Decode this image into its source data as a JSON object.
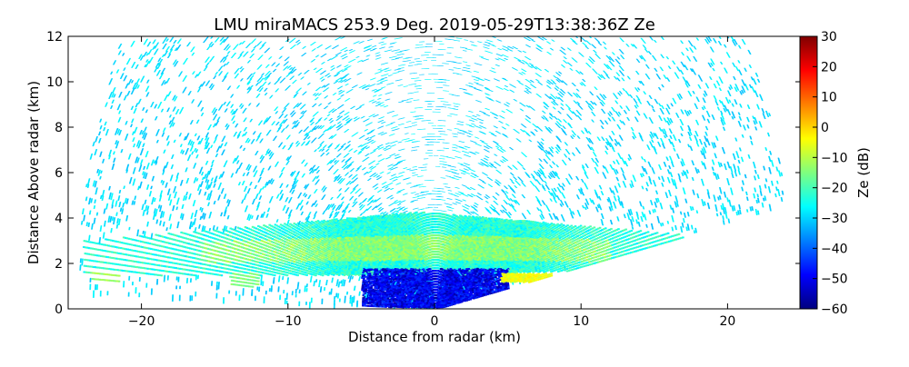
{
  "chart_data": {
    "type": "heatmap",
    "title": "LMU miraMACS 253.9 Deg. 2019-05-29T13:38:36Z  Ze",
    "xlabel": "Distance from radar (km)",
    "ylabel": "Distance Above radar  (km)",
    "xlim": [
      -25,
      25
    ],
    "ylim": [
      0,
      12
    ],
    "x_ticks": [
      -20,
      -10,
      0,
      10,
      20
    ],
    "x_tick_labels": [
      "−20",
      "−10",
      "0",
      "10",
      "20"
    ],
    "y_ticks": [
      0,
      2,
      4,
      6,
      8,
      10,
      12
    ],
    "y_tick_labels": [
      "0",
      "2",
      "4",
      "6",
      "8",
      "10",
      "12"
    ],
    "grid": false,
    "colorbar": {
      "label": "Ze (dB)",
      "range": [
        -60,
        30
      ],
      "ticks": [
        -60,
        -50,
        -40,
        -30,
        -20,
        -10,
        0,
        10,
        20,
        30
      ],
      "tick_labels": [
        "−60",
        "−50",
        "−40",
        "−30",
        "−20",
        "−10",
        "0",
        "10",
        "20",
        "30"
      ],
      "colormap": [
        "#00007f",
        "#0000ff",
        "#007fff",
        "#00ffff",
        "#7fff7f",
        "#ffff00",
        "#ff7f00",
        "#ff0000",
        "#7f0000"
      ]
    },
    "scan": {
      "radar_position_km": [
        0,
        0
      ],
      "max_range_km": 24.5,
      "elevation_start_deg": 10,
      "elevation_end_deg": 178,
      "lower_right_cutoff_slope": 0.18
    },
    "layers": [
      {
        "name": "noise-background",
        "range_km": [
          0,
          24.5
        ],
        "ze_db": -29
      },
      {
        "name": "cloud-layer-main",
        "x_km": [
          -24,
          17
        ],
        "z_km": [
          1.5,
          4.3
        ],
        "ze_db_range": [
          -28,
          -18
        ]
      },
      {
        "name": "cloud-core-bright",
        "x_km": [
          -16,
          12
        ],
        "z_km": [
          2.2,
          3.3
        ],
        "ze_db": -15
      },
      {
        "name": "weak-echo-near-radar",
        "x_km": [
          -5,
          5
        ],
        "z_km": [
          0.1,
          1.8
        ],
        "ze_db": -50
      },
      {
        "name": "bright-band-patch",
        "x_km": [
          4.5,
          8
        ],
        "z_km": [
          1.2,
          1.6
        ],
        "ze_db": -5
      },
      {
        "name": "low-level-patch-left",
        "x_km": [
          -23.5,
          -21.5
        ],
        "z_km": [
          1.2,
          1.7
        ],
        "ze_db": -12
      },
      {
        "name": "low-level-patch-mid",
        "x_km": [
          -14,
          -12
        ],
        "z_km": [
          1.0,
          1.6
        ],
        "ze_db": -15
      }
    ]
  }
}
